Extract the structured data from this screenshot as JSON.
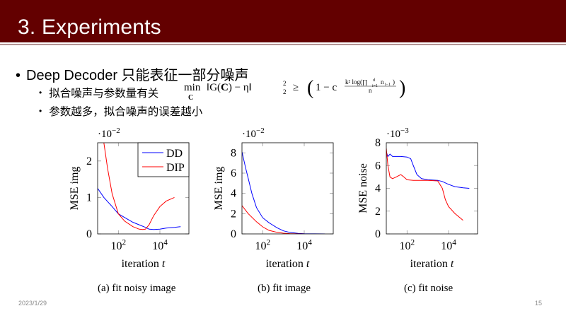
{
  "header": {
    "title": "3. Experiments",
    "bg_color": "#630000"
  },
  "bullets": {
    "main": "Deep Decoder 只能表征一部分噪声",
    "sub": [
      "拟合噪声与参数量有关",
      "参数越多，拟合噪声的误差越小"
    ],
    "formula": "min_C ‖G(C) − η‖₂² ≥ (1 − c^{k² log(∏_{i=1}^{d} n_{i−1}) / n})"
  },
  "footer": {
    "date": "2023/1/29",
    "page": "15"
  },
  "colors": {
    "DD": "#0000ff",
    "DIP": "#ff0000"
  },
  "chart_data": [
    {
      "type": "line",
      "caption": "(a) fit noisy image",
      "xlabel": "iteration t",
      "ylabel": "MSE img",
      "y_scale_label": "·10^-2",
      "x_scale": "log",
      "xlim": [
        10,
        250000
      ],
      "ylim": [
        0,
        2.5
      ],
      "xticks": [
        "10^2",
        "10^4"
      ],
      "yticks": [
        0,
        1,
        2
      ],
      "grid": false,
      "legend": {
        "position": "upper right",
        "entries": [
          "DD",
          "DIP"
        ]
      },
      "series": [
        {
          "name": "DD",
          "x": [
            10,
            20,
            50,
            100,
            200,
            500,
            1000,
            2000,
            3000,
            5000,
            10000,
            20000,
            50000,
            100000
          ],
          "y": [
            1.25,
            1.0,
            0.75,
            0.55,
            0.45,
            0.32,
            0.25,
            0.18,
            0.13,
            0.12,
            0.13,
            0.16,
            0.18,
            0.2
          ]
        },
        {
          "name": "DIP",
          "x": [
            20,
            30,
            50,
            100,
            200,
            500,
            1000,
            1500,
            2000,
            3000,
            5000,
            10000,
            20000,
            50000
          ],
          "y": [
            2.5,
            1.8,
            1.1,
            0.55,
            0.35,
            0.2,
            0.13,
            0.12,
            0.13,
            0.25,
            0.5,
            0.75,
            0.9,
            1.0
          ]
        }
      ]
    },
    {
      "type": "line",
      "caption": "(b) fit image",
      "xlabel": "iteration t",
      "ylabel": "MSE img",
      "y_scale_label": "·10^-2",
      "x_scale": "log",
      "xlim": [
        10,
        250000
      ],
      "ylim": [
        0,
        9
      ],
      "xticks": [
        "10^2",
        "10^4"
      ],
      "yticks": [
        0,
        2,
        4,
        6,
        8
      ],
      "grid": false,
      "series": [
        {
          "name": "DD",
          "x": [
            10,
            15,
            20,
            30,
            50,
            100,
            200,
            500,
            1000,
            2000,
            5000,
            10000,
            100000
          ],
          "y": [
            8.1,
            6.5,
            5.5,
            4.0,
            2.6,
            1.6,
            1.1,
            0.6,
            0.3,
            0.15,
            0.05,
            0.02,
            0.0
          ]
        },
        {
          "name": "DIP",
          "x": [
            10,
            20,
            50,
            100,
            200,
            500,
            1000,
            2000,
            5000,
            10000
          ],
          "y": [
            2.8,
            2.0,
            1.2,
            0.7,
            0.35,
            0.15,
            0.07,
            0.03,
            0.01,
            0.0
          ]
        }
      ]
    },
    {
      "type": "line",
      "caption": "(c) fit noise",
      "xlabel": "iteration t",
      "ylabel": "MSE noise",
      "y_scale_label": "·10^-3",
      "x_scale": "log",
      "xlim": [
        10,
        250000
      ],
      "ylim": [
        0,
        8
      ],
      "xticks": [
        "10^2",
        "10^4"
      ],
      "yticks": [
        0,
        2,
        4,
        6,
        8
      ],
      "grid": false,
      "series": [
        {
          "name": "DD",
          "x": [
            10,
            12,
            15,
            20,
            50,
            100,
            150,
            200,
            300,
            500,
            1000,
            3000,
            5000,
            10000,
            20000,
            50000,
            100000
          ],
          "y": [
            7.2,
            6.8,
            7.0,
            6.8,
            6.8,
            6.75,
            6.6,
            6.0,
            5.2,
            4.85,
            4.75,
            4.7,
            4.6,
            4.35,
            4.15,
            4.05,
            4.0
          ]
        },
        {
          "name": "DIP",
          "x": [
            10,
            12,
            15,
            20,
            30,
            50,
            70,
            100,
            200,
            500,
            1000,
            3000,
            5000,
            7000,
            10000,
            20000,
            50000
          ],
          "y": [
            7.5,
            6.0,
            5.0,
            4.85,
            5.0,
            5.2,
            5.0,
            4.75,
            4.7,
            4.7,
            4.7,
            4.65,
            4.0,
            3.0,
            2.4,
            1.8,
            1.2
          ]
        }
      ]
    }
  ]
}
